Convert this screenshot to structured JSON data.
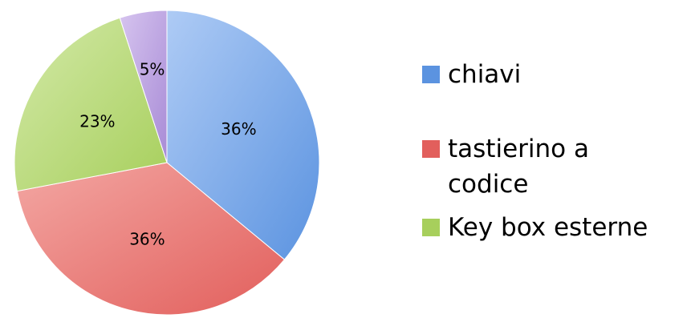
{
  "chart_data": {
    "type": "pie",
    "title": "",
    "legend_position": "right",
    "categories": [
      "chiavi",
      "tastierino a codice",
      "Key box esterne",
      ""
    ],
    "values": [
      36,
      36,
      23,
      5
    ],
    "data_labels": [
      "36%",
      "36%",
      "23%",
      "5%"
    ],
    "series": [
      {
        "values": [
          36,
          36,
          23,
          5
        ]
      }
    ],
    "colors": {
      "chiavi": "#5b93e0",
      "tastierino a codice": "#e25f5c",
      "Key box esterne": "#a7cf5c",
      "fourth": "#a88bd6"
    },
    "legend": [
      {
        "lines": [
          "chiavi"
        ],
        "color": "#5b93e0"
      },
      {
        "lines": [
          "tastierino a",
          "codice"
        ],
        "color": "#e25f5c"
      },
      {
        "lines": [
          "Key box esterne"
        ],
        "color": "#a7cf5c"
      }
    ]
  }
}
